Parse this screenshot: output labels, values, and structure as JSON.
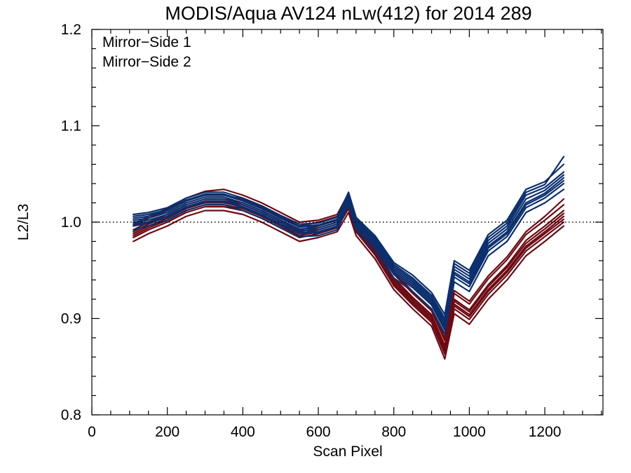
{
  "chart_data": {
    "type": "line",
    "title": "MODIS/Aqua AV124 nLw(412) for 2014 289",
    "xlabel": "Scan Pixel",
    "ylabel": "L2/L3",
    "xlim": [
      0,
      1354
    ],
    "ylim": [
      0.8,
      1.2
    ],
    "xticks": [
      0,
      200,
      400,
      600,
      800,
      1000,
      1200
    ],
    "yticks": [
      0.8,
      0.9,
      1.0,
      1.1,
      1.2
    ],
    "xtick_labels": [
      "0",
      "200",
      "400",
      "600",
      "800",
      "1000",
      "1200"
    ],
    "ytick_labels": [
      "0.8",
      "0.9",
      "1.0",
      "1.1",
      "1.2"
    ],
    "x_minor_step": 50,
    "y_minor_step": 0.02,
    "reference_line": {
      "y": 1.0,
      "style": "dotted"
    },
    "grid": false,
    "legend_position": "top-left",
    "legend": [
      {
        "label": "Mirror−Side 1",
        "color": "#0b2f6e"
      },
      {
        "label": "Mirror−Side 2",
        "color": "#6e0a12"
      }
    ],
    "x": [
      110,
      150,
      200,
      250,
      300,
      350,
      400,
      450,
      500,
      550,
      600,
      650,
      680,
      700,
      750,
      800,
      850,
      900,
      935,
      960,
      1000,
      1050,
      1100,
      1150,
      1200,
      1250
    ],
    "series": [
      {
        "group": 0,
        "values": [
          1.0,
          1.002,
          1.008,
          1.018,
          1.024,
          1.024,
          1.018,
          1.01,
          1.0,
          0.991,
          0.992,
          0.998,
          1.024,
          0.998,
          0.978,
          0.95,
          0.936,
          0.918,
          0.892,
          0.948,
          0.938,
          0.975,
          0.99,
          1.02,
          1.03,
          1.046
        ]
      },
      {
        "group": 0,
        "values": [
          1.004,
          1.006,
          1.012,
          1.022,
          1.028,
          1.028,
          1.022,
          1.014,
          1.004,
          0.995,
          0.996,
          1.002,
          1.028,
          1.002,
          0.982,
          0.954,
          0.94,
          0.922,
          0.898,
          0.954,
          0.944,
          0.981,
          0.996,
          1.028,
          1.036,
          1.052
        ]
      },
      {
        "group": 0,
        "values": [
          0.996,
          0.999,
          1.005,
          1.015,
          1.021,
          1.021,
          1.015,
          1.007,
          0.997,
          0.988,
          0.989,
          0.995,
          1.021,
          0.995,
          0.974,
          0.946,
          0.932,
          0.914,
          0.888,
          0.943,
          0.933,
          0.97,
          0.985,
          1.015,
          1.025,
          1.04
        ]
      },
      {
        "group": 0,
        "values": [
          1.008,
          1.01,
          1.015,
          1.025,
          1.031,
          1.031,
          1.025,
          1.017,
          1.007,
          0.998,
          0.999,
          1.005,
          1.031,
          1.005,
          0.986,
          0.958,
          0.945,
          0.927,
          0.904,
          0.96,
          0.95,
          0.987,
          1.002,
          1.034,
          1.042,
          1.06
        ]
      },
      {
        "group": 0,
        "values": [
          0.992,
          0.996,
          1.002,
          1.012,
          1.018,
          1.018,
          1.012,
          1.004,
          0.994,
          0.985,
          0.986,
          0.992,
          1.018,
          0.992,
          0.97,
          0.942,
          0.928,
          0.91,
          0.884,
          0.938,
          0.928,
          0.965,
          0.98,
          1.01,
          1.02,
          1.034
        ]
      },
      {
        "group": 0,
        "values": [
          1.002,
          1.004,
          1.01,
          1.02,
          1.026,
          1.026,
          1.02,
          1.012,
          1.002,
          0.993,
          0.994,
          1.0,
          1.026,
          1.0,
          0.98,
          0.952,
          0.938,
          0.92,
          0.895,
          0.951,
          0.941,
          0.978,
          0.993,
          1.024,
          1.033,
          1.049
        ]
      },
      {
        "group": 0,
        "values": [
          0.998,
          1.0,
          1.006,
          1.016,
          1.022,
          1.022,
          1.016,
          1.008,
          0.998,
          0.989,
          0.99,
          0.996,
          1.022,
          0.996,
          0.976,
          0.948,
          0.934,
          0.916,
          0.89,
          0.946,
          0.936,
          0.973,
          0.988,
          1.018,
          1.028,
          1.043
        ]
      },
      {
        "group": 0,
        "values": [
          1.006,
          1.008,
          1.013,
          1.023,
          1.029,
          1.029,
          1.023,
          1.015,
          1.005,
          0.996,
          0.997,
          1.003,
          1.029,
          1.003,
          0.984,
          0.956,
          0.942,
          0.924,
          0.9,
          0.957,
          0.947,
          0.984,
          0.999,
          1.031,
          1.039,
          1.068
        ]
      },
      {
        "group": 1,
        "values": [
          0.988,
          0.996,
          1.004,
          1.014,
          1.02,
          1.02,
          1.016,
          1.008,
          0.998,
          0.988,
          0.992,
          0.998,
          1.018,
          0.994,
          0.97,
          0.938,
          0.918,
          0.9,
          0.868,
          0.915,
          0.904,
          0.93,
          0.95,
          0.975,
          0.99,
          1.006
        ]
      },
      {
        "group": 1,
        "values": [
          0.992,
          1.0,
          1.008,
          1.018,
          1.024,
          1.024,
          1.02,
          1.012,
          1.002,
          0.992,
          0.996,
          1.002,
          1.022,
          0.998,
          0.974,
          0.942,
          0.922,
          0.904,
          0.872,
          0.92,
          0.909,
          0.935,
          0.955,
          0.981,
          0.996,
          1.012
        ]
      },
      {
        "group": 1,
        "values": [
          0.984,
          0.992,
          1.0,
          1.01,
          1.016,
          1.016,
          1.012,
          1.004,
          0.994,
          0.984,
          0.988,
          0.994,
          1.014,
          0.99,
          0.966,
          0.934,
          0.914,
          0.896,
          0.863,
          0.91,
          0.899,
          0.925,
          0.945,
          0.97,
          0.985,
          1.0
        ]
      },
      {
        "group": 1,
        "values": [
          0.996,
          1.004,
          1.012,
          1.022,
          1.028,
          1.028,
          1.024,
          1.016,
          1.006,
          0.996,
          1.0,
          1.006,
          1.026,
          1.002,
          0.978,
          0.946,
          0.926,
          0.908,
          0.877,
          0.926,
          0.915,
          0.941,
          0.961,
          0.987,
          1.002,
          1.018
        ]
      },
      {
        "group": 1,
        "values": [
          0.98,
          0.988,
          0.996,
          1.006,
          1.012,
          1.012,
          1.008,
          1.0,
          0.99,
          0.98,
          0.984,
          0.99,
          1.01,
          0.986,
          0.962,
          0.93,
          0.91,
          0.892,
          0.858,
          0.905,
          0.894,
          0.92,
          0.94,
          0.965,
          0.98,
          0.996
        ]
      },
      {
        "group": 1,
        "values": [
          0.99,
          0.998,
          1.006,
          1.016,
          1.022,
          1.022,
          1.018,
          1.01,
          1.0,
          0.99,
          0.994,
          1.0,
          1.02,
          0.996,
          0.972,
          0.94,
          0.92,
          0.902,
          0.87,
          0.918,
          0.907,
          0.933,
          0.953,
          0.978,
          0.993,
          1.009
        ]
      },
      {
        "group": 1,
        "values": [
          0.986,
          0.994,
          1.002,
          1.012,
          1.018,
          1.018,
          1.014,
          1.006,
          0.996,
          0.986,
          0.99,
          0.996,
          1.016,
          0.992,
          0.968,
          0.936,
          0.916,
          0.898,
          0.865,
          0.913,
          0.902,
          0.928,
          0.948,
          0.973,
          0.988,
          1.003
        ]
      },
      {
        "group": 1,
        "values": [
          0.998,
          1.006,
          1.014,
          1.025,
          1.032,
          1.034,
          1.028,
          1.02,
          1.01,
          1.0,
          1.002,
          1.008,
          1.03,
          1.004,
          0.98,
          0.948,
          0.928,
          0.91,
          0.88,
          0.929,
          0.918,
          0.944,
          0.964,
          0.99,
          1.006,
          1.024
        ]
      }
    ]
  }
}
